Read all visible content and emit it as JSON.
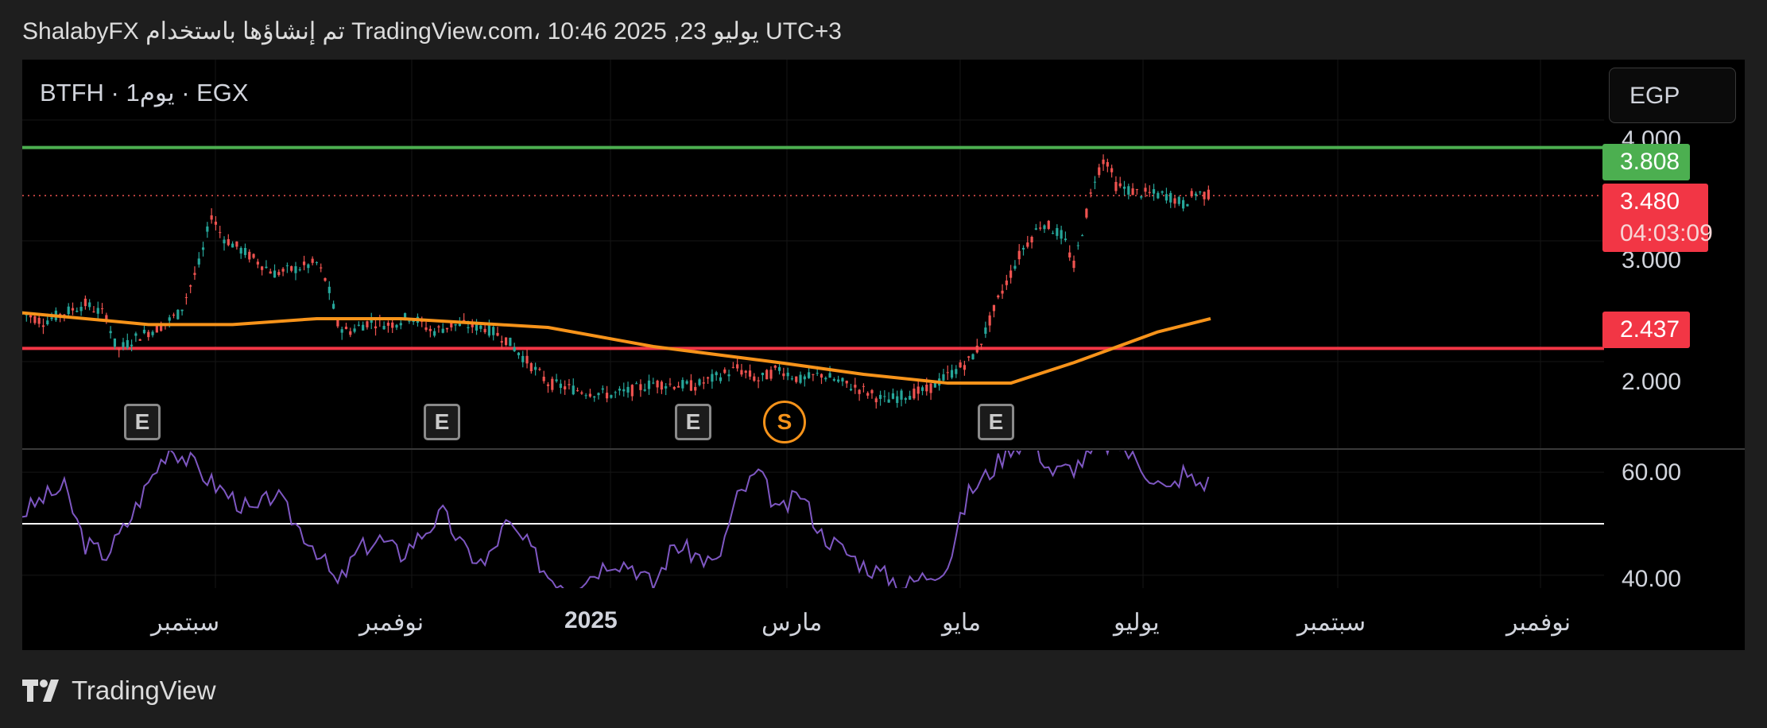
{
  "header": {
    "text": "ShalabyFX تم إنشاؤها باستخدام TradingView.com، 10:46 2025 ,23 يوليو UTC+3"
  },
  "symbol_line": "BTFH · 1يوم · EGX",
  "currency_button": "EGP",
  "footer": {
    "brand": "TradingView"
  },
  "colors": {
    "up": "#26a69a",
    "down": "#ef5350",
    "ma": "#f7931a",
    "rsi": "#7e57c2",
    "resistance": "#4caf50",
    "support": "#f23645"
  },
  "chart_data": {
    "type": "candlestick",
    "symbol": "BTFH",
    "exchange": "EGX",
    "interval": "1يوم",
    "currency": "EGP",
    "price_axis": {
      "ticks": [
        "4.000",
        "3.000",
        "2.000"
      ],
      "range": [
        1.75,
        4.3
      ]
    },
    "x_axis_labels": [
      "سبتمبر",
      "نوفمبر",
      "2025",
      "مارس",
      "مايو",
      "يوليو",
      "سبتمبر",
      "نوفمبر"
    ],
    "horizontal_lines": [
      {
        "label": "3.808",
        "value": 3.808,
        "color": "#4caf50"
      },
      {
        "label": "2.437",
        "value": 2.437,
        "color": "#f23645"
      }
    ],
    "last_price": {
      "label": "3.480",
      "value": 3.48,
      "countdown": "04:03:09"
    },
    "price_path": [
      [
        0,
        2.68
      ],
      [
        10,
        2.62
      ],
      [
        20,
        2.68
      ],
      [
        30,
        2.74
      ],
      [
        40,
        2.66
      ],
      [
        45,
        2.42
      ],
      [
        55,
        2.52
      ],
      [
        65,
        2.58
      ],
      [
        75,
        2.68
      ],
      [
        85,
        3.05
      ],
      [
        90,
        3.35
      ],
      [
        95,
        3.2
      ],
      [
        105,
        3.1
      ],
      [
        115,
        3.0
      ],
      [
        120,
        2.95
      ],
      [
        130,
        2.98
      ],
      [
        140,
        3.02
      ],
      [
        145,
        2.88
      ],
      [
        150,
        2.6
      ],
      [
        155,
        2.55
      ],
      [
        165,
        2.62
      ],
      [
        175,
        2.6
      ],
      [
        185,
        2.66
      ],
      [
        195,
        2.55
      ],
      [
        205,
        2.6
      ],
      [
        220,
        2.58
      ],
      [
        230,
        2.5
      ],
      [
        250,
        2.2
      ],
      [
        265,
        2.15
      ],
      [
        280,
        2.12
      ],
      [
        290,
        2.15
      ],
      [
        300,
        2.2
      ],
      [
        320,
        2.18
      ],
      [
        340,
        2.3
      ],
      [
        350,
        2.22
      ],
      [
        360,
        2.3
      ],
      [
        370,
        2.22
      ],
      [
        380,
        2.26
      ],
      [
        390,
        2.2
      ],
      [
        400,
        2.15
      ],
      [
        410,
        2.08
      ],
      [
        420,
        2.12
      ],
      [
        430,
        2.15
      ],
      [
        440,
        2.25
      ],
      [
        450,
        2.35
      ],
      [
        455,
        2.45
      ],
      [
        465,
        2.8
      ],
      [
        475,
        3.1
      ],
      [
        485,
        3.3
      ],
      [
        495,
        3.2
      ],
      [
        500,
        3.0
      ],
      [
        510,
        3.6
      ],
      [
        515,
        3.75
      ],
      [
        520,
        3.55
      ],
      [
        530,
        3.5
      ],
      [
        545,
        3.48
      ],
      [
        552,
        3.42
      ],
      [
        558,
        3.5
      ],
      [
        565,
        3.48
      ]
    ],
    "moving_average": {
      "color": "#f7931a",
      "points": [
        [
          0,
          2.68
        ],
        [
          60,
          2.6
        ],
        [
          100,
          2.6
        ],
        [
          140,
          2.64
        ],
        [
          180,
          2.64
        ],
        [
          250,
          2.58
        ],
        [
          300,
          2.45
        ],
        [
          360,
          2.34
        ],
        [
          400,
          2.26
        ],
        [
          440,
          2.2
        ],
        [
          470,
          2.2
        ],
        [
          500,
          2.34
        ],
        [
          540,
          2.55
        ],
        [
          565,
          2.64
        ]
      ]
    },
    "events": [
      {
        "type": "E",
        "x": 58
      },
      {
        "type": "E",
        "x": 200
      },
      {
        "type": "E",
        "x": 320
      },
      {
        "type": "S",
        "x": 363
      },
      {
        "type": "E",
        "x": 465
      }
    ],
    "rsi": {
      "ticks": [
        "60.00",
        "40.00"
      ],
      "midline": 50,
      "range": [
        37.5,
        64.5
      ],
      "path": [
        [
          0,
          52
        ],
        [
          10,
          55
        ],
        [
          20,
          57
        ],
        [
          30,
          46
        ],
        [
          40,
          44
        ],
        [
          50,
          50
        ],
        [
          60,
          58
        ],
        [
          70,
          65
        ],
        [
          80,
          62
        ],
        [
          90,
          58
        ],
        [
          100,
          55
        ],
        [
          110,
          52
        ],
        [
          120,
          56
        ],
        [
          130,
          50
        ],
        [
          140,
          45
        ],
        [
          150,
          38
        ],
        [
          160,
          45
        ],
        [
          170,
          47
        ],
        [
          180,
          44
        ],
        [
          190,
          48
        ],
        [
          200,
          52
        ],
        [
          210,
          45
        ],
        [
          220,
          42
        ],
        [
          230,
          50
        ],
        [
          240,
          46
        ],
        [
          250,
          40
        ],
        [
          260,
          38
        ],
        [
          270,
          40
        ],
        [
          280,
          43
        ],
        [
          290,
          42
        ],
        [
          300,
          38
        ],
        [
          310,
          46
        ],
        [
          320,
          44
        ],
        [
          330,
          42
        ],
        [
          340,
          55
        ],
        [
          350,
          60
        ],
        [
          360,
          52
        ],
        [
          370,
          56
        ],
        [
          380,
          48
        ],
        [
          390,
          45
        ],
        [
          400,
          42
        ],
        [
          410,
          40
        ],
        [
          420,
          38
        ],
        [
          430,
          40
        ],
        [
          440,
          42
        ],
        [
          450,
          56
        ],
        [
          460,
          60
        ],
        [
          470,
          65
        ],
        [
          480,
          66
        ],
        [
          490,
          60
        ],
        [
          500,
          61
        ],
        [
          510,
          64
        ],
        [
          520,
          66
        ],
        [
          530,
          62
        ],
        [
          540,
          58
        ],
        [
          545,
          56
        ],
        [
          552,
          60
        ],
        [
          558,
          58
        ],
        [
          565,
          58
        ]
      ]
    }
  }
}
